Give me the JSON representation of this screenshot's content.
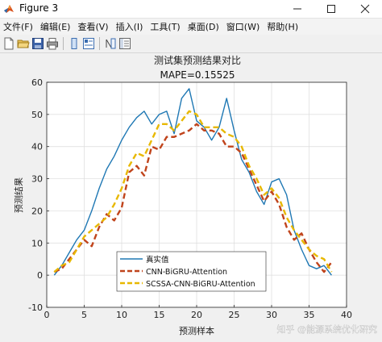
{
  "window": {
    "title": "Figure 3",
    "minimize_icon": "minimize-icon",
    "maximize_icon": "maximize-icon",
    "close_icon": "close-icon"
  },
  "menu": [
    "文件(F)",
    "编辑(E)",
    "查看(V)",
    "插入(I)",
    "工具(T)",
    "桌面(D)",
    "窗口(W)",
    "帮助(H)"
  ],
  "toolbar": {
    "icons": [
      "new-figure-icon",
      "open-file-icon",
      "save-icon",
      "print-icon",
      "link-plot-icon",
      "property-inspector-icon",
      "hide-plot-tools-icon",
      "show-plot-tools-icon"
    ]
  },
  "watermark": "知乎 @能源系统优化研究",
  "colors": {
    "series1": "#1f78b4",
    "series2": "#c0441c",
    "series3": "#e8b800"
  },
  "chart_data": {
    "type": "line",
    "title": "测试集预测结果对比",
    "subtitle": "MAPE=0.15525",
    "xlabel": "预测样本",
    "ylabel": "预测结果",
    "xlim": [
      0,
      40
    ],
    "ylim": [
      -10,
      60
    ],
    "xticks": [
      0,
      5,
      10,
      15,
      20,
      25,
      30,
      35,
      40
    ],
    "yticks": [
      -10,
      0,
      10,
      20,
      30,
      40,
      50,
      60
    ],
    "grid": true,
    "legend_position": "bottom-center",
    "x": [
      1,
      2,
      3,
      4,
      5,
      6,
      7,
      8,
      9,
      10,
      11,
      12,
      13,
      14,
      15,
      16,
      17,
      18,
      19,
      20,
      21,
      22,
      23,
      24,
      25,
      26,
      27,
      28,
      29,
      30,
      31,
      32,
      33,
      34,
      35,
      36,
      37,
      38
    ],
    "series": [
      {
        "name": "真实值",
        "style": "solid",
        "values": [
          0,
          3,
          7,
          11,
          14,
          20,
          27,
          33,
          37,
          42,
          46,
          49,
          51,
          47,
          50,
          51,
          44,
          55,
          58,
          48,
          46,
          42,
          46,
          55,
          45,
          36,
          32,
          26,
          22,
          29,
          30,
          25,
          14,
          8,
          3,
          2,
          3,
          0
        ]
      },
      {
        "name": "CNN-BiGRU-Attention",
        "style": "dashed",
        "values": [
          1,
          2,
          5,
          8,
          11,
          9,
          15,
          19,
          17,
          21,
          32,
          34,
          31,
          40,
          39,
          43,
          43,
          44,
          45,
          47,
          45,
          45,
          44,
          40,
          40,
          38,
          33,
          28,
          23,
          26,
          22,
          15,
          11,
          13,
          8,
          4,
          1,
          4
        ]
      },
      {
        "name": "SCSSA-CNN-BiGRU-Attention",
        "style": "dashed",
        "values": [
          1,
          3,
          4,
          8,
          12,
          14,
          16,
          18,
          22,
          27,
          34,
          38,
          37,
          42,
          47,
          47,
          45,
          48,
          51,
          50,
          46,
          46,
          46,
          44,
          43,
          40,
          34,
          30,
          25,
          27,
          24,
          18,
          14,
          11,
          8,
          6,
          5,
          1
        ]
      }
    ]
  }
}
